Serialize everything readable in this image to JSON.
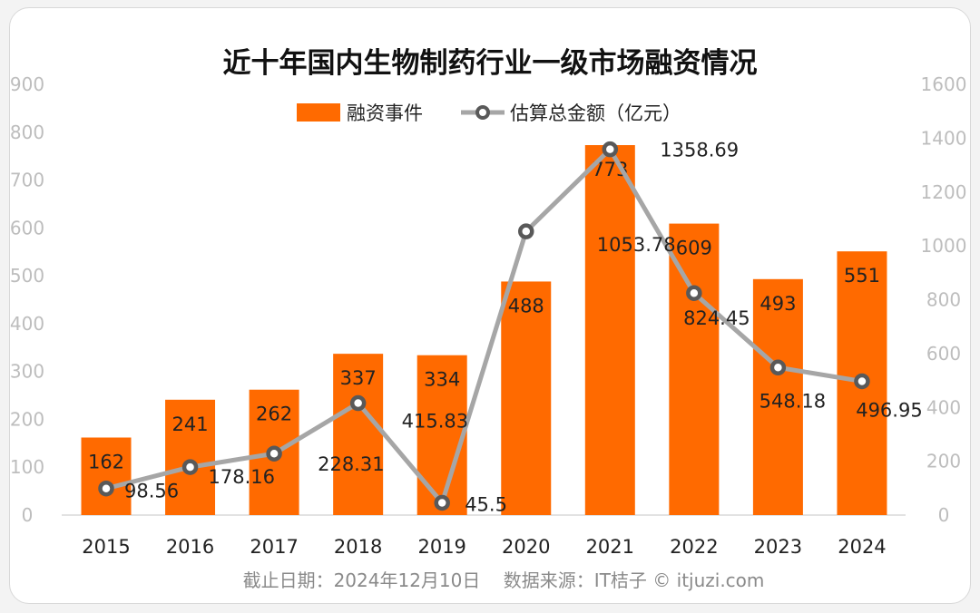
{
  "chart_data": {
    "type": "bar+line",
    "title": "近十年国内生物制药行业一级市场融资情况",
    "categories": [
      "2015",
      "2016",
      "2017",
      "2018",
      "2019",
      "2020",
      "2021",
      "2022",
      "2023",
      "2024"
    ],
    "series": [
      {
        "name": "融资事件",
        "type": "bar",
        "axis": "left",
        "color": "#ff6a00",
        "values": [
          162,
          241,
          262,
          337,
          334,
          488,
          773,
          609,
          493,
          551
        ]
      },
      {
        "name": "估算总金额（亿元）",
        "type": "line",
        "axis": "right",
        "color": "#a6a6a6",
        "marker_color": "#595959",
        "values": [
          98.56,
          178.16,
          228.31,
          415.83,
          45.5,
          1053.78,
          1358.69,
          824.45,
          548.18,
          496.95
        ]
      }
    ],
    "left_axis": {
      "range": [
        0,
        900
      ],
      "ticks": [
        "0",
        "100",
        "200",
        "300",
        "400",
        "500",
        "600",
        "700",
        "800",
        "900"
      ]
    },
    "right_axis": {
      "range": [
        0,
        1600
      ],
      "ticks": [
        "0",
        "200",
        "400",
        "600",
        "800",
        "1000",
        "1200",
        "1400",
        "1600"
      ]
    },
    "legend_placement": "top-center",
    "grid": false
  },
  "footer": "截止日期：2024年12月10日    数据来源：IT桔子 © itjuzi.com"
}
